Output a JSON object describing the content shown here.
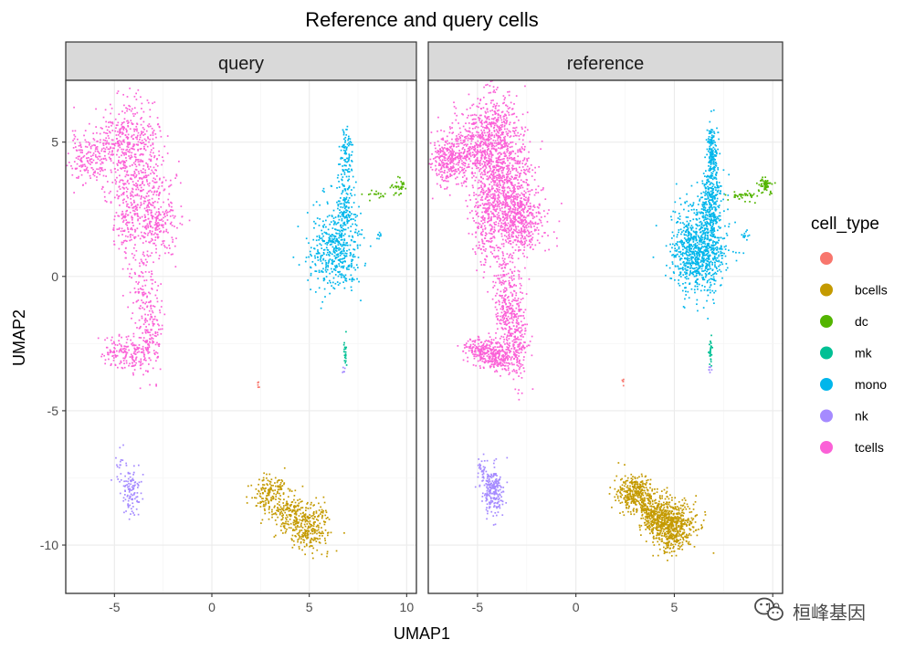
{
  "chart_data": {
    "type": "scatter",
    "title": "Reference and query cells",
    "xlabel": "UMAP1",
    "ylabel": "UMAP2",
    "xlim": [
      -7.5,
      10.5
    ],
    "ylim": [
      -11.8,
      7.3
    ],
    "x_ticks": [
      -5,
      0,
      5,
      10
    ],
    "x_tick_labels": [
      "-5",
      "0",
      "5",
      "10"
    ],
    "y_ticks": [
      5,
      0,
      -5,
      -10
    ],
    "y_tick_labels": [
      "5",
      "0",
      "-5",
      "-10"
    ],
    "grid": true,
    "facets": [
      {
        "label": "query",
        "seed": 11
      },
      {
        "label": "reference",
        "seed": 29
      }
    ],
    "legend": {
      "title": "cell_type",
      "position": "right",
      "items": [
        {
          "label": "",
          "color": "#F8766D"
        },
        {
          "label": "bcells",
          "color": "#C49A00"
        },
        {
          "label": "dc",
          "color": "#53B400"
        },
        {
          "label": "mk",
          "color": "#00C094"
        },
        {
          "label": "mono",
          "color": "#00B6EB"
        },
        {
          "label": "nk",
          "color": "#A58AFF"
        },
        {
          "label": "tcells",
          "color": "#FB61D7"
        }
      ]
    },
    "clusters": [
      {
        "cell_type": "tcells",
        "color": "#FB61D7",
        "blobs": [
          {
            "cx": -6.3,
            "cy": 4.4,
            "sx": 0.55,
            "sy": 0.45,
            "query": 180,
            "reference": 360
          },
          {
            "cx": -4.3,
            "cy": 5.0,
            "sx": 0.8,
            "sy": 0.9,
            "query": 420,
            "reference": 820
          },
          {
            "cx": -3.5,
            "cy": 3.0,
            "sx": 0.75,
            "sy": 0.9,
            "query": 320,
            "reference": 640
          },
          {
            "cx": -2.8,
            "cy": 1.9,
            "sx": 0.6,
            "sy": 0.55,
            "query": 150,
            "reference": 300
          },
          {
            "cx": -4.5,
            "cy": 2.0,
            "sx": 0.35,
            "sy": 0.9,
            "query": 90,
            "reference": 180
          },
          {
            "cx": -3.5,
            "cy": -0.8,
            "sx": 0.35,
            "sy": 1.0,
            "query": 130,
            "reference": 260
          },
          {
            "cx": -3.0,
            "cy": -2.2,
            "sx": 0.3,
            "sy": 0.9,
            "query": 110,
            "reference": 220
          },
          {
            "cx": -4.0,
            "cy": -2.9,
            "sx": 0.45,
            "sy": 0.3,
            "query": 110,
            "reference": 220
          },
          {
            "cx": -4.9,
            "cy": -2.8,
            "sx": 0.4,
            "sy": 0.3,
            "query": 70,
            "reference": 150
          }
        ]
      },
      {
        "cell_type": "mono",
        "color": "#00B6EB",
        "blobs": [
          {
            "cx": 6.3,
            "cy": 1.0,
            "sx": 0.65,
            "sy": 0.8,
            "query": 460,
            "reference": 900
          },
          {
            "cx": 6.9,
            "cy": 2.8,
            "sx": 0.25,
            "sy": 0.7,
            "query": 140,
            "reference": 280
          },
          {
            "cx": 6.9,
            "cy": 4.7,
            "sx": 0.15,
            "sy": 0.5,
            "query": 80,
            "reference": 160
          },
          {
            "cx": 8.6,
            "cy": 1.5,
            "sx": 0.08,
            "sy": 0.1,
            "query": 8,
            "reference": 12
          }
        ]
      },
      {
        "cell_type": "dc",
        "color": "#53B400",
        "blobs": [
          {
            "cx": 9.6,
            "cy": 3.4,
            "sx": 0.2,
            "sy": 0.15,
            "query": 30,
            "reference": 60
          },
          {
            "cx": 8.6,
            "cy": 3.0,
            "sx": 0.35,
            "sy": 0.1,
            "query": 20,
            "reference": 40
          }
        ]
      },
      {
        "cell_type": "mk",
        "color": "#00C094",
        "blobs": [
          {
            "cx": 6.85,
            "cy": -2.8,
            "sx": 0.04,
            "sy": 0.3,
            "query": 22,
            "reference": 28
          }
        ]
      },
      {
        "cell_type": "nk",
        "color": "#A58AFF",
        "blobs": [
          {
            "cx": -4.2,
            "cy": -8.0,
            "sx": 0.25,
            "sy": 0.45,
            "query": 110,
            "reference": 220
          },
          {
            "cx": -4.8,
            "cy": -7.2,
            "sx": 0.12,
            "sy": 0.3,
            "query": 15,
            "reference": 30
          },
          {
            "cx": 6.8,
            "cy": -3.5,
            "sx": 0.04,
            "sy": 0.1,
            "query": 5,
            "reference": 7
          }
        ]
      },
      {
        "cell_type": "bcells",
        "color": "#C49A00",
        "blobs": [
          {
            "cx": 4.9,
            "cy": -9.3,
            "sx": 0.6,
            "sy": 0.45,
            "query": 300,
            "reference": 600
          },
          {
            "cx": 3.0,
            "cy": -8.1,
            "sx": 0.45,
            "sy": 0.35,
            "query": 170,
            "reference": 340
          },
          {
            "cx": 3.9,
            "cy": -8.8,
            "sx": 0.4,
            "sy": 0.35,
            "query": 120,
            "reference": 240
          }
        ]
      },
      {
        "cell_type": "",
        "color": "#F8766D",
        "blobs": [
          {
            "cx": 2.4,
            "cy": -3.95,
            "sx": 0.05,
            "sy": 0.1,
            "query": 5,
            "reference": 5
          }
        ]
      }
    ]
  },
  "watermark": {
    "text": "桓峰基因",
    "icon": "wechat-icon"
  }
}
